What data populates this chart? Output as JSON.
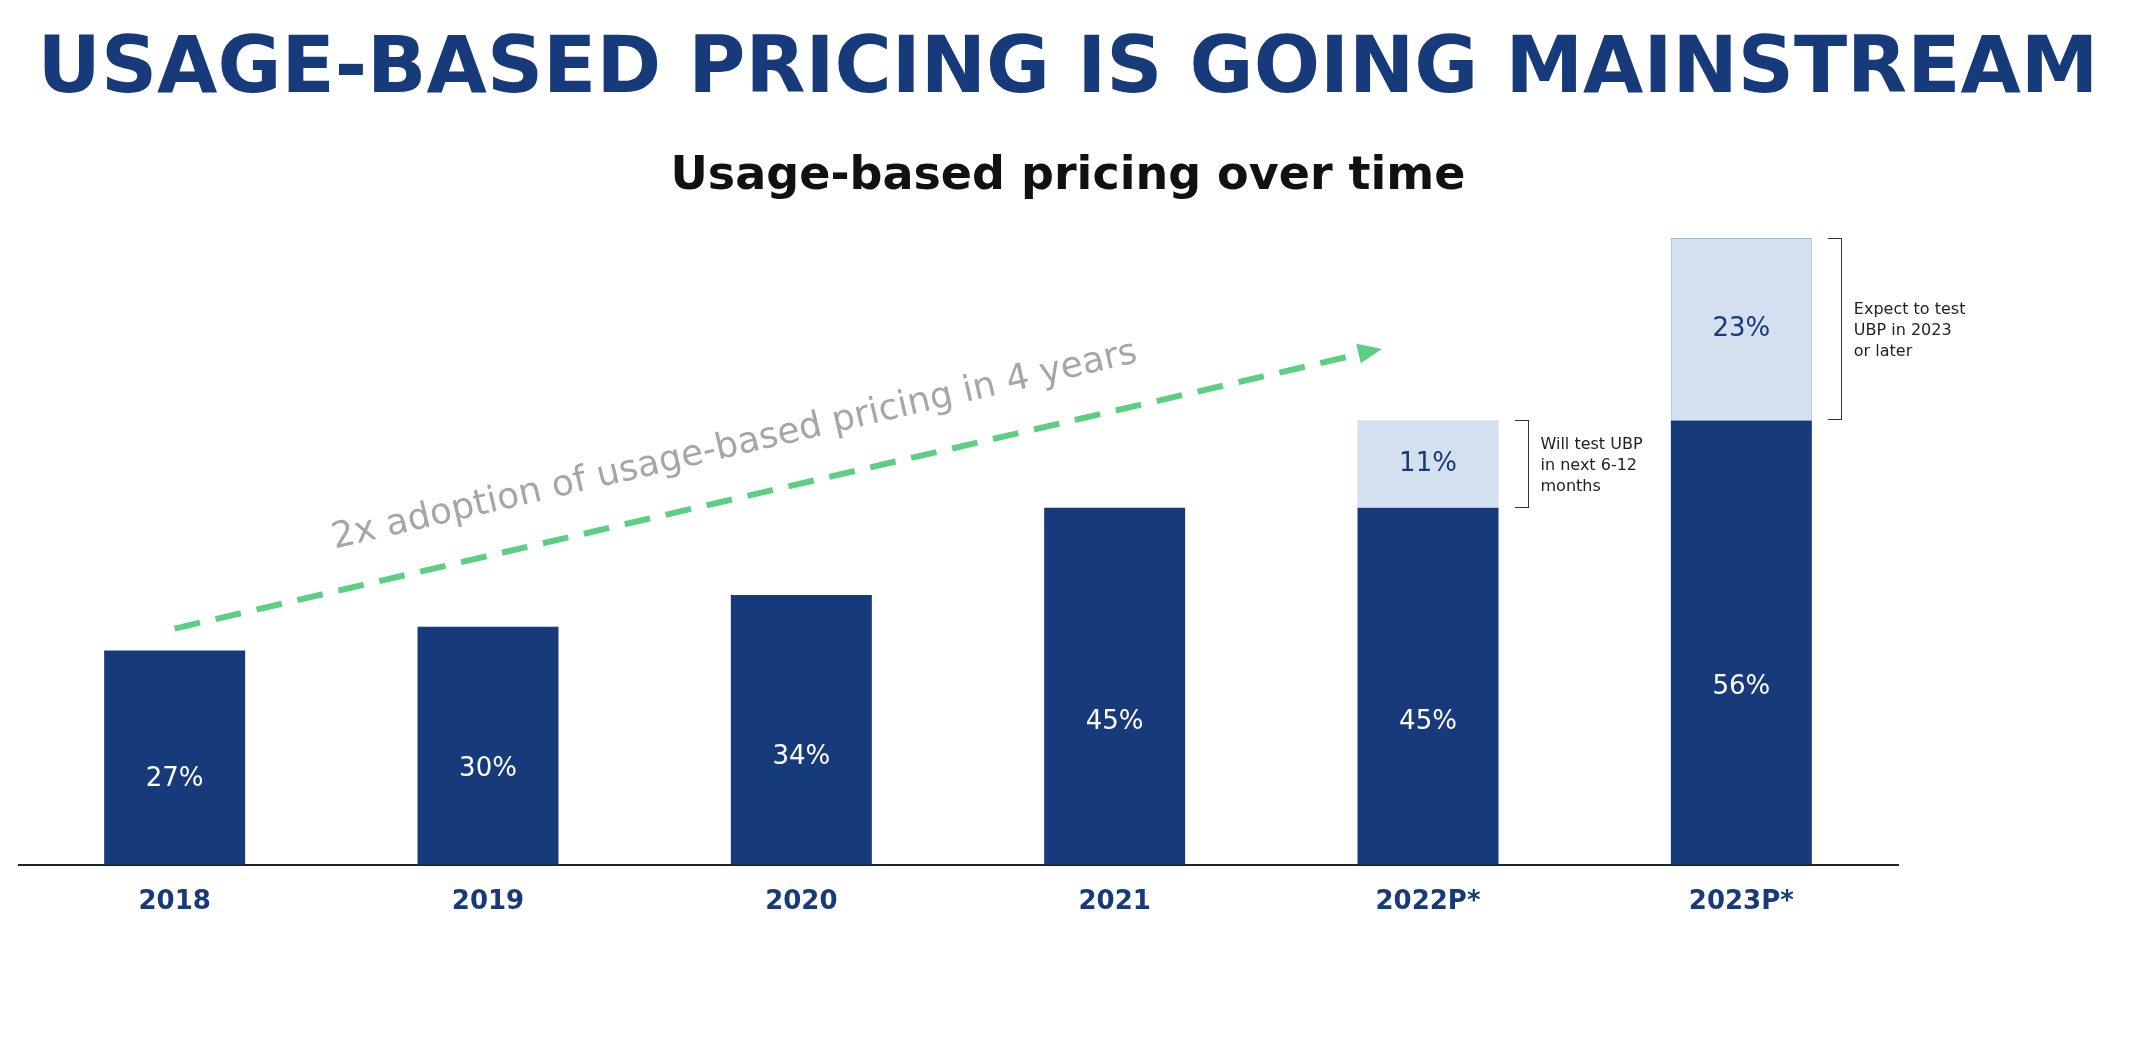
{
  "chart_data": {
    "type": "bar",
    "title": "USAGE-BASED PRICING IS GOING MAINSTREAM",
    "subtitle": "Usage-based pricing over time",
    "categories": [
      "2018",
      "2019",
      "2020",
      "2021",
      "2022P*",
      "2023P*"
    ],
    "stacked": true,
    "series": [
      {
        "color": "#173a7a",
        "values": [
          27,
          30,
          34,
          45,
          45,
          56
        ],
        "value_labels": [
          "27%",
          "30%",
          "34%",
          "45%",
          "45%",
          "56%"
        ]
      },
      {
        "color": "#d3e0f0",
        "values": [
          null,
          null,
          null,
          null,
          11,
          23
        ],
        "value_labels": [
          null,
          null,
          null,
          null,
          "11%",
          "23%"
        ]
      }
    ],
    "annotations": [
      "2x adoption of usage-based pricing in 4 years",
      "Will test UBP in next 6-12 months",
      "Expect to test UBP in 2023 or later"
    ],
    "grid": false,
    "legend": false
  }
}
